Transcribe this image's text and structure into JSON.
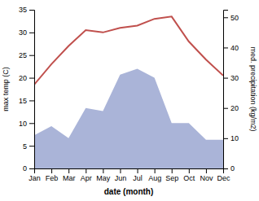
{
  "chart_data": {
    "type": "line",
    "x_label": "date (month)",
    "y_label": "max temp (C)",
    "y2_label": "med. precipitation (kg/m2)",
    "categories": [
      "Jan",
      "Feb",
      "Mar",
      "Apr",
      "May",
      "Jun",
      "Jul",
      "Aug",
      "Sep",
      "Oct",
      "Nov",
      "Dec"
    ],
    "series": [
      {
        "type": "area",
        "axis": "y2",
        "color": "#aab4d8",
        "values": [
          11,
          14,
          10,
          20,
          19,
          31,
          33,
          30,
          15,
          15,
          9.5,
          9.5
        ]
      },
      {
        "type": "line",
        "color": "#c0504d",
        "values": [
          18.5,
          23,
          27,
          30.5,
          30,
          31,
          31.5,
          33,
          33.5,
          28,
          24,
          20.5
        ]
      }
    ],
    "ylim": [
      0,
      35
    ],
    "yticks": [
      0,
      5,
      10,
      15,
      20,
      25,
      30,
      35
    ],
    "y2lim": [
      0,
      52.5
    ],
    "y2ticks": [
      0,
      10,
      20,
      30,
      40,
      50
    ]
  }
}
